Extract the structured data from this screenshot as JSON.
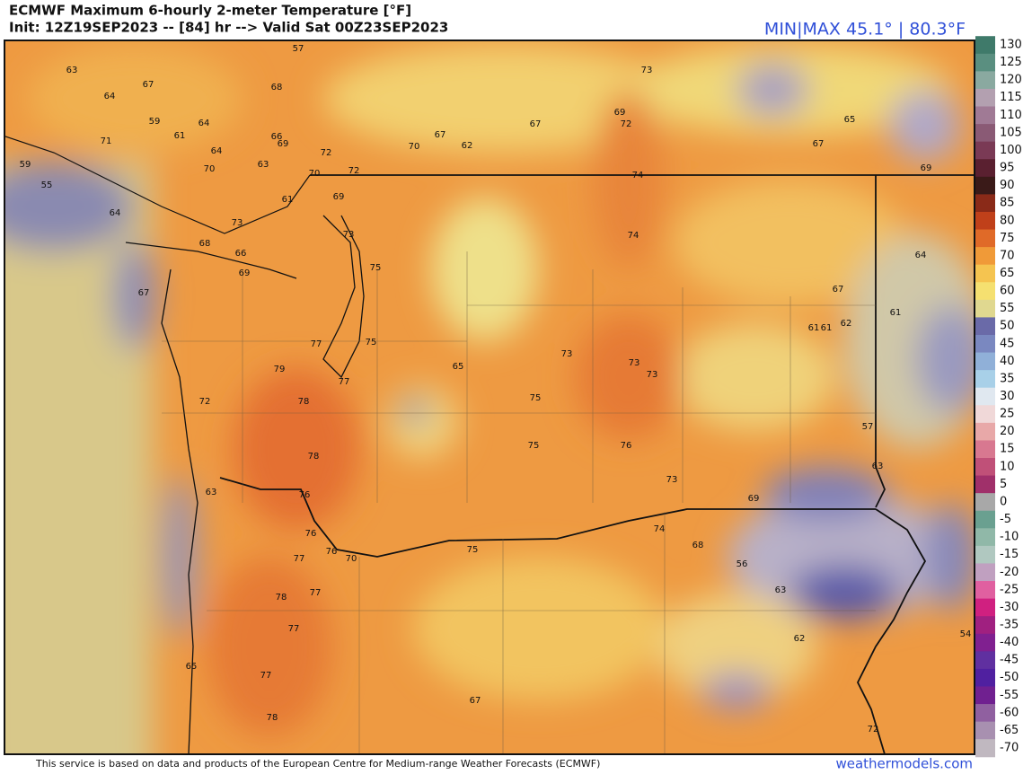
{
  "header": {
    "title": "ECMWF Maximum 6-hourly 2-meter Temperature [°F]",
    "subtitle": "Init: 12Z19SEP2023 -- [84] hr --> Valid Sat 00Z23SEP2023",
    "minmax": "MIN|MAX 45.1° | 80.3°F"
  },
  "colorbar": {
    "ticks": [
      130,
      125,
      120,
      115,
      110,
      105,
      100,
      95,
      90,
      85,
      80,
      75,
      70,
      65,
      60,
      55,
      50,
      45,
      40,
      35,
      30,
      25,
      20,
      15,
      10,
      5,
      0,
      -5,
      -10,
      -15,
      -20,
      -25,
      -30,
      -35,
      -40,
      -45,
      -50,
      -55,
      -60,
      -65,
      -70
    ],
    "colors": [
      "#3f7a6a",
      "#5a8f80",
      "#8aa9a0",
      "#b3a0b0",
      "#a07a95",
      "#8a5a75",
      "#7a3a55",
      "#5a2030",
      "#3a1a18",
      "#8a2a18",
      "#c0401a",
      "#e06a28",
      "#f09a38",
      "#f5c450",
      "#f5e070",
      "#e0d890",
      "#6a6aa8",
      "#7a88c0",
      "#90b0d8",
      "#a8d0e8",
      "#e0e8f0",
      "#f0d8d8",
      "#e8a8a8",
      "#d87890",
      "#c05078",
      "#a0306a",
      "#a8a8a8",
      "#6aa090",
      "#90b8a8",
      "#b0c8c0",
      "#c0a0c0",
      "#e060a0",
      "#d02080",
      "#a02080",
      "#802090",
      "#6030a0",
      "#5020a0",
      "#702090",
      "#9060a0",
      "#a890b0",
      "#c0b8c0"
    ]
  },
  "map": {
    "labels": [
      "57",
      "73",
      "63",
      "67",
      "64",
      "68",
      "59",
      "64",
      "61",
      "71",
      "69",
      "72",
      "67",
      "65",
      "67",
      "62",
      "70",
      "67",
      "72",
      "66",
      "69",
      "64",
      "63",
      "70",
      "59",
      "70",
      "72",
      "74",
      "69",
      "55",
      "61",
      "69",
      "64",
      "73",
      "73",
      "74",
      "68",
      "66",
      "64",
      "69",
      "75",
      "67",
      "67",
      "62",
      "61",
      "61",
      "61",
      "77",
      "75",
      "73",
      "73",
      "73",
      "79",
      "65",
      "77",
      "78",
      "75",
      "72",
      "57",
      "75",
      "76",
      "78",
      "63",
      "73",
      "76",
      "69",
      "63",
      "74",
      "76",
      "68",
      "70",
      "76",
      "75",
      "77",
      "56",
      "78",
      "77",
      "63",
      "77",
      "62",
      "54",
      "65",
      "77",
      "67",
      "78",
      "72"
    ]
  },
  "footer": {
    "credit": "This service is based on data and products of the European Centre for Medium-range Weather Forecasts (ECMWF)",
    "site": "weathermodels.com"
  }
}
